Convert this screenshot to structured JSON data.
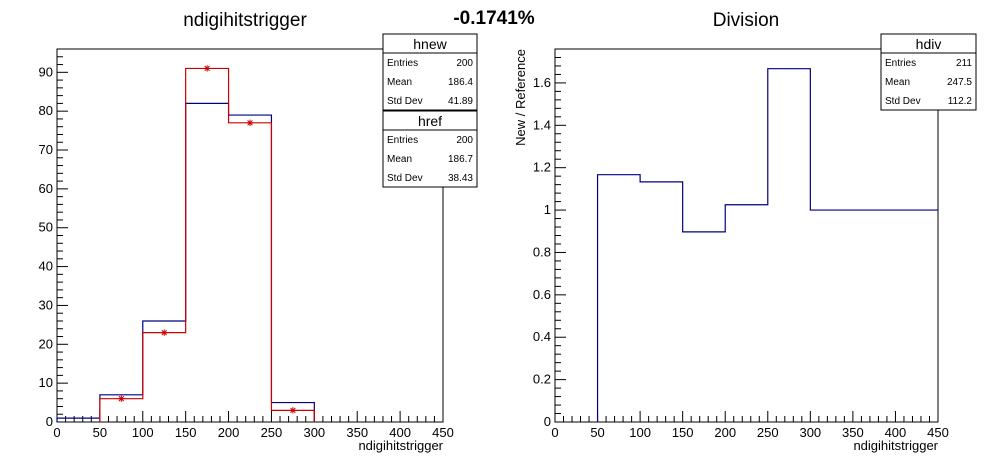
{
  "header": {
    "center_label": "-0.1741%"
  },
  "chart_data": [
    {
      "type": "histogram",
      "title": "ndigihitstrigger",
      "xlabel": "ndigihitstrigger",
      "ylabel": "",
      "xlim": [
        0,
        450
      ],
      "ylim": [
        0,
        96
      ],
      "x_ticks": [
        "0",
        "50",
        "100",
        "150",
        "200",
        "250",
        "300",
        "350",
        "400",
        "450"
      ],
      "y_ticks": [
        "0",
        "10",
        "20",
        "30",
        "40",
        "50",
        "60",
        "70",
        "80",
        "90"
      ],
      "y_tick_values": [
        0,
        10,
        20,
        30,
        40,
        50,
        60,
        70,
        80,
        90
      ],
      "bin_edges": [
        0,
        50,
        100,
        150,
        200,
        250,
        300,
        350,
        400,
        450
      ],
      "series": [
        {
          "name": "href",
          "color": "#000080",
          "style": "step",
          "values": [
            1,
            7,
            26,
            82,
            79,
            5,
            0,
            0,
            0
          ]
        },
        {
          "name": "hnew",
          "color": "#cc0000",
          "style": "step-markers",
          "values": [
            0,
            6,
            23,
            91,
            77,
            3,
            0,
            0,
            0
          ]
        }
      ],
      "stats": [
        {
          "name": "hnew",
          "rows": [
            {
              "label": "Entries",
              "value": "200"
            },
            {
              "label": "Mean",
              "value": "186.4"
            },
            {
              "label": "Std Dev",
              "value": "41.89"
            }
          ]
        },
        {
          "name": "href",
          "rows": [
            {
              "label": "Entries",
              "value": "200"
            },
            {
              "label": "Mean",
              "value": "186.7"
            },
            {
              "label": "Std Dev",
              "value": "38.43"
            }
          ]
        }
      ]
    },
    {
      "type": "histogram",
      "title": "Division",
      "xlabel": "ndigihitstrigger",
      "ylabel": "New / Reference",
      "xlim": [
        0,
        450
      ],
      "ylim": [
        0,
        1.76
      ],
      "x_ticks": [
        "0",
        "50",
        "100",
        "150",
        "200",
        "250",
        "300",
        "350",
        "400",
        "450"
      ],
      "y_ticks": [
        "0",
        "0.2",
        "0.4",
        "0.6",
        "0.8",
        "1",
        "1.2",
        "1.4",
        "1.6"
      ],
      "y_tick_values": [
        0,
        0.2,
        0.4,
        0.6,
        0.8,
        1.0,
        1.2,
        1.4,
        1.6
      ],
      "bin_edges": [
        0,
        50,
        100,
        150,
        200,
        250,
        300,
        350,
        400,
        450
      ],
      "series": [
        {
          "name": "hdiv",
          "color": "#000080",
          "style": "step",
          "values": [
            0,
            1.167,
            1.133,
            0.897,
            1.025,
            1.667,
            1.0,
            1.0,
            1.0
          ]
        }
      ],
      "stats": [
        {
          "name": "hdiv",
          "rows": [
            {
              "label": "Entries",
              "value": "211"
            },
            {
              "label": "Mean",
              "value": "247.5"
            },
            {
              "label": "Std Dev",
              "value": "112.2"
            }
          ]
        }
      ]
    }
  ]
}
